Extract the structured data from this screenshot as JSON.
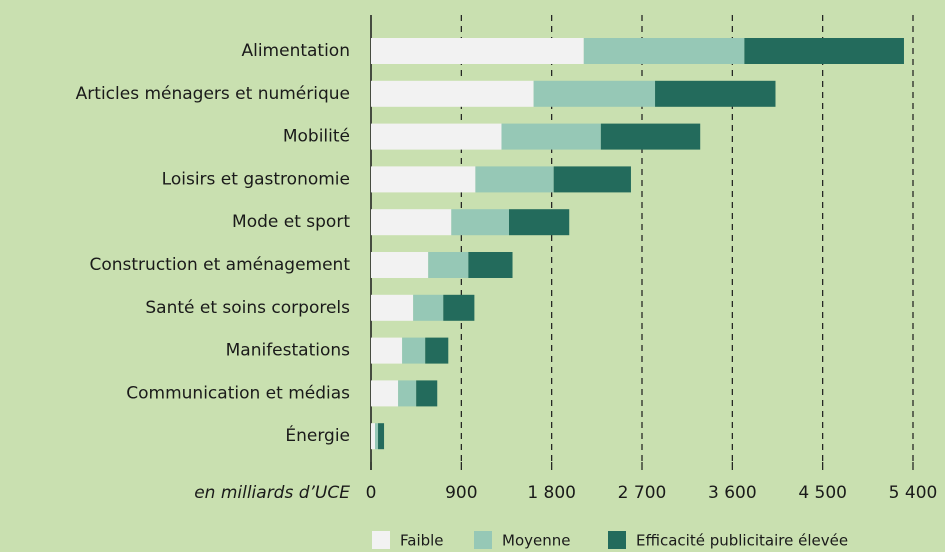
{
  "chart_data": {
    "type": "stacked_barh",
    "categories": [
      "Alimentation",
      "Articles ménagers et numérique",
      "Mobilité",
      "Loisirs et gastronomie",
      "Mode et sport",
      "Construction et aménagement",
      "Santé et soins corporels",
      "Manifestations",
      "Communication et médias",
      "Énergie"
    ],
    "series": [
      {
        "name": "Faible",
        "color": "#f2f2f2",
        "values": [
          2120,
          1620,
          1300,
          1040,
          800,
          570,
          420,
          310,
          270,
          40
        ]
      },
      {
        "name": "Moyenne",
        "color": "#96c8b6",
        "values": [
          1600,
          1210,
          990,
          780,
          575,
          400,
          300,
          230,
          180,
          30
        ]
      },
      {
        "name": "Efficacité publicitaire élevée",
        "color": "#236b5c",
        "values": [
          1590,
          1200,
          990,
          770,
          600,
          440,
          310,
          230,
          210,
          60
        ]
      }
    ],
    "xlabel": "en milliards d’UCE",
    "xlim": [
      0,
      5400
    ],
    "xticks": [
      0,
      900,
      {
        "value": 1800,
        "label": "1 800"
      },
      {
        "value": 2700,
        "label": "2 700"
      },
      {
        "value": 3600,
        "label": "3 600"
      },
      {
        "value": 4500,
        "label": "4 500"
      },
      {
        "value": 5400,
        "label": "5 400"
      }
    ],
    "grid": true,
    "legend": "bottom"
  }
}
